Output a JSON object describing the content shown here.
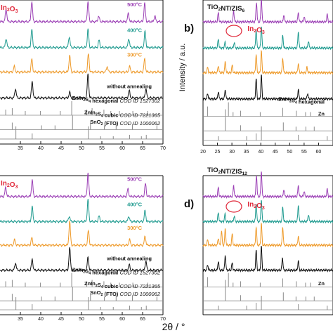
{
  "ylabel": "Intensity / a.u.",
  "xlabel": "2θ / °",
  "colors": {
    "500": "#9b3fb5",
    "400": "#1e9a8f",
    "300": "#ee9a2a",
    "none": "#111111",
    "ref": "#8a8a8a",
    "red": "#e0293b",
    "label500": "#9b3fb5",
    "label400": "#1e9a8f",
    "label300": "#ee9a2a"
  },
  "chart_data": [
    {
      "id": "a",
      "panel_tag": "",
      "title": "",
      "type": "line",
      "xlim": [
        30,
        70
      ],
      "xticks": [
        "35",
        "40",
        "45",
        "50",
        "55",
        "60",
        "65",
        "70"
      ],
      "inset_label": "In2O3",
      "series": [
        {
          "name": "500°C",
          "peaks": [
            [
              31.5,
              0.7
            ],
            [
              37.8,
              1.1
            ],
            [
              51.6,
              1.1
            ],
            [
              54.2,
              0.3
            ],
            [
              61.5,
              0.45
            ],
            [
              65.5,
              1.0
            ],
            [
              68.0,
              0.3
            ]
          ]
        },
        {
          "name": "400°C",
          "peaks": [
            [
              31.5,
              0.5
            ],
            [
              37.8,
              1.0
            ],
            [
              47.0,
              0.6
            ],
            [
              51.6,
              1.0
            ],
            [
              54.3,
              0.4
            ],
            [
              61.6,
              0.5
            ],
            [
              65.6,
              0.9
            ]
          ]
        },
        {
          "name": "300°C",
          "peaks": [
            [
              33.5,
              0.3
            ],
            [
              37.8,
              0.7
            ],
            [
              47.1,
              0.9
            ],
            [
              51.7,
              1.0
            ],
            [
              56.3,
              0.3
            ],
            [
              61.8,
              0.3
            ],
            [
              65.5,
              0.7
            ]
          ]
        },
        {
          "name": "without annealing",
          "peaks": [
            [
              33.8,
              0.5
            ],
            [
              37.9,
              0.9
            ],
            [
              47.1,
              0.3
            ],
            [
              51.6,
              1.3
            ],
            [
              61.7,
              0.4
            ],
            [
              65.8,
              0.5
            ]
          ]
        }
      ],
      "references": [
        {
          "name": "ZnIn2S4 hexagonal",
          "cod": "COD ID 1527302",
          "sticks": [
            [
              31.4,
              0.4
            ],
            [
              33.0,
              0.5
            ],
            [
              36.2,
              0.3
            ],
            [
              39.9,
              0.3
            ],
            [
              44.8,
              0.3
            ],
            [
              47.6,
              1.0
            ],
            [
              51.3,
              0.4
            ],
            [
              52.6,
              0.5
            ],
            [
              55.5,
              0.4
            ],
            [
              57.2,
              0.3
            ],
            [
              59.3,
              0.3
            ],
            [
              62.6,
              0.3
            ],
            [
              66.2,
              0.3
            ]
          ]
        },
        {
          "name": "ZnIn2S4 cubic",
          "cod": "COD ID 7221365",
          "sticks": [
            [
              33.0,
              0.5
            ],
            [
              40.2,
              0.3
            ],
            [
              43.5,
              0.3
            ],
            [
              47.8,
              1.0
            ],
            [
              52.2,
              0.5
            ],
            [
              55.6,
              0.3
            ],
            [
              58.5,
              0.4
            ],
            [
              62.5,
              0.4
            ],
            [
              68.5,
              0.3
            ]
          ]
        },
        {
          "name": "SnO2 (FTO)",
          "cod": "COD ID 1000062",
          "sticks": [
            [
              33.9,
              0.9
            ],
            [
              37.9,
              0.4
            ],
            [
              51.7,
              0.9
            ],
            [
              54.7,
              0.2
            ],
            [
              57.8,
              0.2
            ],
            [
              61.8,
              0.3
            ],
            [
              64.7,
              0.2
            ],
            [
              65.9,
              0.3
            ]
          ]
        }
      ]
    },
    {
      "id": "b",
      "panel_tag": "b)",
      "title": "TiO2NT/ZIS6",
      "type": "line",
      "xlim": [
        20,
        65
      ],
      "xticks": [
        "20",
        "25",
        "30",
        "35",
        "40",
        "45",
        "50",
        "55",
        "60"
      ],
      "inset_label": "In2O3",
      "series": [
        {
          "name": "500°C",
          "peaks": [
            [
              25.3,
              0.5
            ],
            [
              30.6,
              0.6
            ],
            [
              38.5,
              1.1
            ],
            [
              40.2,
              1.3
            ],
            [
              48.0,
              0.4
            ],
            [
              53.0,
              0.5
            ],
            [
              55.0,
              0.3
            ],
            [
              63.0,
              0.4
            ]
          ]
        },
        {
          "name": "400°C",
          "peaks": [
            [
              25.3,
              0.5
            ],
            [
              27.6,
              0.3
            ],
            [
              30.8,
              0.3
            ],
            [
              38.4,
              1.0
            ],
            [
              40.2,
              1.2
            ],
            [
              47.6,
              0.7
            ],
            [
              53.0,
              0.9
            ],
            [
              56.5,
              0.4
            ]
          ]
        },
        {
          "name": "300°C",
          "peaks": [
            [
              21.6,
              0.3
            ],
            [
              25.3,
              0.4
            ],
            [
              27.7,
              0.6
            ],
            [
              30.1,
              0.4
            ],
            [
              38.4,
              1.0
            ],
            [
              40.2,
              1.2
            ],
            [
              47.6,
              0.8
            ],
            [
              53.0,
              0.5
            ],
            [
              56.0,
              0.3
            ]
          ]
        },
        {
          "name": "without annealing",
          "peaks": [
            [
              21.6,
              0.3
            ],
            [
              25.3,
              0.4
            ],
            [
              27.7,
              0.5
            ],
            [
              38.4,
              1.1
            ],
            [
              40.2,
              1.3
            ],
            [
              53.0,
              0.5
            ],
            [
              56.2,
              0.3
            ]
          ]
        }
      ],
      "references": [
        {
          "name": "ZnIn2S4 hexagonal",
          "cod": "",
          "sticks": [
            [
              21.6,
              0.7
            ],
            [
              27.7,
              0.5
            ],
            [
              28.8,
              1.0
            ],
            [
              30.4,
              0.3
            ],
            [
              33.0,
              0.4
            ],
            [
              39.8,
              0.3
            ],
            [
              47.6,
              0.6
            ],
            [
              52.3,
              0.4
            ],
            [
              55.5,
              0.3
            ],
            [
              57.2,
              0.3
            ]
          ]
        },
        {
          "name": "Zn",
          "cod": "",
          "sticks": [
            [
              27.7,
              1.0
            ],
            [
              33.0,
              0.4
            ],
            [
              40.2,
              0.3
            ],
            [
              47.8,
              0.6
            ],
            [
              52.2,
              0.3
            ],
            [
              55.6,
              0.3
            ],
            [
              58.5,
              0.3
            ]
          ]
        },
        {
          "name": "",
          "cod": "",
          "sticks": [
            [
              25.3,
              0.3
            ],
            [
              35.1,
              0.3
            ],
            [
              38.4,
              0.5
            ],
            [
              40.2,
              1.0
            ],
            [
              53.0,
              0.4
            ],
            [
              63.0,
              0.3
            ]
          ]
        }
      ]
    },
    {
      "id": "c",
      "panel_tag": "",
      "title": "",
      "type": "line",
      "xlim": [
        30,
        70
      ],
      "xticks": [
        "35",
        "40",
        "45",
        "50",
        "55",
        "60",
        "65",
        "70"
      ],
      "inset_label": "In2O3",
      "series": [
        {
          "name": "500°C",
          "peaks": [
            [
              31.4,
              0.5
            ],
            [
              37.9,
              0.9
            ],
            [
              51.6,
              1.3
            ],
            [
              61.4,
              0.4
            ],
            [
              65.7,
              0.7
            ]
          ]
        },
        {
          "name": "400°C",
          "peaks": [
            [
              37.9,
              0.8
            ],
            [
              47.0,
              0.3
            ],
            [
              51.6,
              1.2
            ],
            [
              54.3,
              0.3
            ],
            [
              61.6,
              0.3
            ],
            [
              65.6,
              0.6
            ]
          ]
        },
        {
          "name": "300°C",
          "peaks": [
            [
              33.6,
              0.3
            ],
            [
              37.8,
              0.4
            ],
            [
              47.1,
              1.3
            ],
            [
              51.7,
              0.8
            ],
            [
              61.8,
              0.3
            ],
            [
              65.6,
              0.5
            ]
          ]
        },
        {
          "name": "without annealing",
          "peaks": [
            [
              33.8,
              0.4
            ],
            [
              37.9,
              0.6
            ],
            [
              47.1,
              1.2
            ],
            [
              51.6,
              0.7
            ],
            [
              61.7,
              0.3
            ],
            [
              65.8,
              0.5
            ]
          ]
        }
      ],
      "references": [
        {
          "name": "ZnIn2S4 hexagonal",
          "cod": "COD ID 1527302",
          "sticks": [
            [
              31.4,
              0.4
            ],
            [
              33.0,
              0.5
            ],
            [
              36.2,
              0.3
            ],
            [
              39.9,
              0.3
            ],
            [
              44.8,
              0.3
            ],
            [
              47.6,
              1.0
            ],
            [
              51.3,
              0.4
            ],
            [
              52.6,
              0.5
            ],
            [
              55.5,
              0.4
            ],
            [
              57.2,
              0.3
            ],
            [
              59.3,
              0.3
            ],
            [
              62.6,
              0.3
            ],
            [
              66.2,
              0.3
            ]
          ]
        },
        {
          "name": "ZnIn2S4 cubic",
          "cod": "COD ID 7221365",
          "sticks": [
            [
              33.0,
              0.5
            ],
            [
              40.2,
              0.3
            ],
            [
              43.5,
              0.3
            ],
            [
              47.8,
              1.0
            ],
            [
              52.2,
              0.5
            ],
            [
              55.6,
              0.3
            ],
            [
              58.5,
              0.4
            ],
            [
              62.5,
              0.4
            ],
            [
              68.5,
              0.3
            ]
          ]
        },
        {
          "name": "SnO2 (FTO)",
          "cod": "COD ID 1000062",
          "sticks": [
            [
              33.9,
              0.9
            ],
            [
              37.9,
              0.4
            ],
            [
              51.7,
              0.9
            ],
            [
              54.7,
              0.2
            ],
            [
              57.8,
              0.2
            ],
            [
              61.8,
              0.3
            ],
            [
              64.7,
              0.2
            ],
            [
              65.9,
              0.3
            ]
          ]
        }
      ]
    },
    {
      "id": "d",
      "panel_tag": "d)",
      "title": "TiO2NT/ZIS12",
      "type": "line",
      "xlim": [
        20,
        65
      ],
      "xticks": [],
      "inset_label": "In2O3",
      "series": [
        {
          "name": "500°C",
          "peaks": [
            [
              25.3,
              0.5
            ],
            [
              30.6,
              0.6
            ],
            [
              38.5,
              1.2
            ],
            [
              40.2,
              1.4
            ],
            [
              48.0,
              0.4
            ],
            [
              53.0,
              0.6
            ],
            [
              55.0,
              0.3
            ],
            [
              63.0,
              0.4
            ]
          ]
        },
        {
          "name": "400°C",
          "peaks": [
            [
              25.3,
              0.5
            ],
            [
              27.6,
              0.4
            ],
            [
              30.8,
              0.3
            ],
            [
              38.4,
              1.0
            ],
            [
              40.2,
              1.2
            ],
            [
              47.6,
              0.8
            ],
            [
              53.0,
              0.9
            ],
            [
              56.5,
              0.4
            ]
          ]
        },
        {
          "name": "300°C",
          "peaks": [
            [
              21.6,
              0.3
            ],
            [
              25.3,
              0.4
            ],
            [
              26.4,
              0.8
            ],
            [
              27.7,
              0.9
            ],
            [
              30.1,
              0.6
            ],
            [
              38.4,
              1.0
            ],
            [
              40.2,
              1.2
            ],
            [
              47.6,
              1.0
            ],
            [
              53.0,
              0.5
            ]
          ]
        },
        {
          "name": "without annealing",
          "peaks": [
            [
              21.6,
              0.3
            ],
            [
              25.3,
              0.5
            ],
            [
              27.7,
              0.8
            ],
            [
              30.1,
              0.4
            ],
            [
              38.4,
              1.1
            ],
            [
              40.2,
              1.3
            ],
            [
              47.5,
              0.7
            ],
            [
              53.0,
              0.5
            ]
          ]
        }
      ],
      "references": [
        {
          "name": "",
          "cod": "",
          "sticks": [
            [
              21.6,
              0.7
            ],
            [
              27.7,
              0.5
            ],
            [
              28.8,
              1.0
            ],
            [
              30.4,
              0.3
            ],
            [
              33.0,
              0.4
            ],
            [
              39.8,
              0.3
            ],
            [
              47.6,
              0.6
            ],
            [
              52.3,
              0.4
            ],
            [
              55.5,
              0.3
            ],
            [
              57.2,
              0.3
            ]
          ]
        },
        {
          "name": "Zn",
          "cod": "",
          "sticks": [
            [
              27.7,
              1.0
            ],
            [
              33.0,
              0.4
            ],
            [
              40.2,
              0.3
            ],
            [
              47.8,
              0.6
            ],
            [
              52.2,
              0.3
            ],
            [
              55.6,
              0.3
            ],
            [
              58.5,
              0.3
            ]
          ]
        },
        {
          "name": "",
          "cod": "",
          "sticks": [
            [
              25.3,
              0.3
            ],
            [
              35.1,
              0.3
            ],
            [
              38.4,
              0.5
            ],
            [
              40.2,
              1.0
            ],
            [
              53.0,
              0.4
            ],
            [
              63.0,
              0.3
            ]
          ]
        }
      ]
    }
  ]
}
